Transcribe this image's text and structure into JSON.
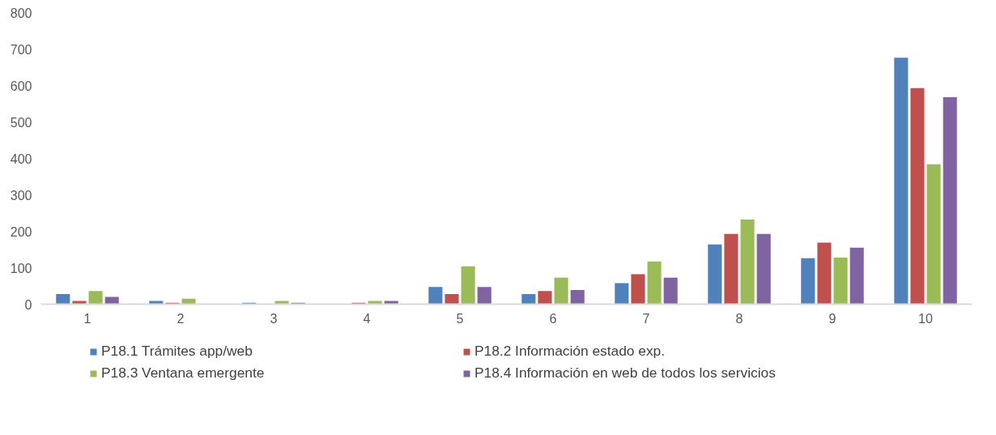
{
  "chart_data": {
    "type": "bar",
    "categories": [
      "1",
      "2",
      "3",
      "4",
      "5",
      "6",
      "7",
      "8",
      "9",
      "10"
    ],
    "series": [
      {
        "name": "P18.1 Trámites app/web",
        "color": "#4f81bd",
        "values": [
          28,
          9,
          4,
          0,
          47,
          28,
          58,
          164,
          126,
          676
        ]
      },
      {
        "name": "P18.2 Información estado exp.",
        "color": "#c0504d",
        "values": [
          9,
          4,
          0,
          4,
          28,
          36,
          82,
          193,
          169,
          593
        ]
      },
      {
        "name": "P18.3 Ventana emergente",
        "color": "#9bbb59",
        "values": [
          36,
          15,
          9,
          9,
          104,
          73,
          117,
          232,
          128,
          384
        ]
      },
      {
        "name": "P18.4 Información en web de todos los servicios",
        "color": "#8064a2",
        "values": [
          20,
          0,
          4,
          9,
          47,
          39,
          73,
          193,
          155,
          568
        ]
      }
    ],
    "ylim": [
      0,
      800
    ],
    "yticks": [
      0,
      100,
      200,
      300,
      400,
      500,
      600,
      700,
      800
    ],
    "grid": false,
    "legend": "bottom"
  }
}
